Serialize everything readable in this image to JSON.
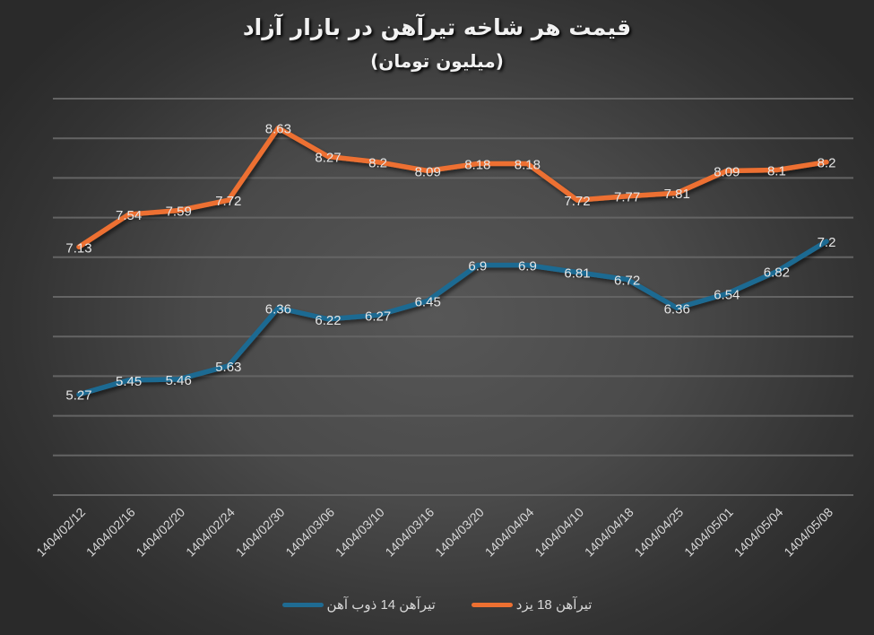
{
  "chart_data": {
    "type": "line",
    "title": "قیمت هر شاخه تیرآهن در بازار آزاد",
    "subtitle": "(میلیون تومان)",
    "xlabel": "",
    "ylabel": "",
    "ylim": [
      4,
      9
    ],
    "grid": true,
    "y_gridline_step": 0.5,
    "y_axis_labels_visible": false,
    "legend_position": "bottom",
    "categories": [
      "1404/02/12",
      "1404/02/16",
      "1404/02/20",
      "1404/02/24",
      "1404/02/30",
      "1404/03/06",
      "1404/03/10",
      "1404/03/16",
      "1404/03/20",
      "1404/04/04",
      "1404/04/10",
      "1404/04/18",
      "1404/04/25",
      "1404/05/01",
      "1404/05/04",
      "1404/05/08"
    ],
    "series": [
      {
        "name": "تیرآهن 18 یزد",
        "color": "#ed7031",
        "values": [
          7.13,
          7.54,
          7.59,
          7.72,
          8.63,
          8.27,
          8.2,
          8.09,
          8.18,
          8.18,
          7.72,
          7.77,
          7.81,
          8.09,
          8.1,
          8.2
        ],
        "labels": [
          "7.13",
          "7.54",
          "7.59",
          "7.72",
          "8.63",
          "8.27",
          "8.2",
          "8.09",
          "8.18",
          "8.18",
          "7.72",
          "7.77",
          "7.81",
          "8.09",
          "8.1",
          "8.2"
        ]
      },
      {
        "name": "تیرآهن 14 ذوب آهن",
        "color": "#1f6b92",
        "values": [
          5.27,
          5.45,
          5.46,
          5.63,
          6.36,
          6.22,
          6.27,
          6.45,
          6.9,
          6.9,
          6.81,
          6.72,
          6.36,
          6.54,
          6.82,
          7.2
        ],
        "labels": [
          "5.27",
          "5.45",
          "5.46",
          "5.63",
          "6.36",
          "6.22",
          "6.27",
          "6.45",
          "6.9",
          "6.9",
          "6.81",
          "6.72",
          "6.36",
          "6.54",
          "6.82",
          "7.2"
        ]
      }
    ]
  },
  "legend": {
    "items": [
      {
        "label": "تیرآهن 14 ذوب آهن",
        "color": "#1f6b92"
      },
      {
        "label": "تیرآهن 18 یزد",
        "color": "#ed7031"
      }
    ]
  },
  "colors": {
    "background_center": "#575757",
    "background_edge": "#2a2a2a",
    "gridline": "#646464",
    "text": "#d9d9d9"
  }
}
